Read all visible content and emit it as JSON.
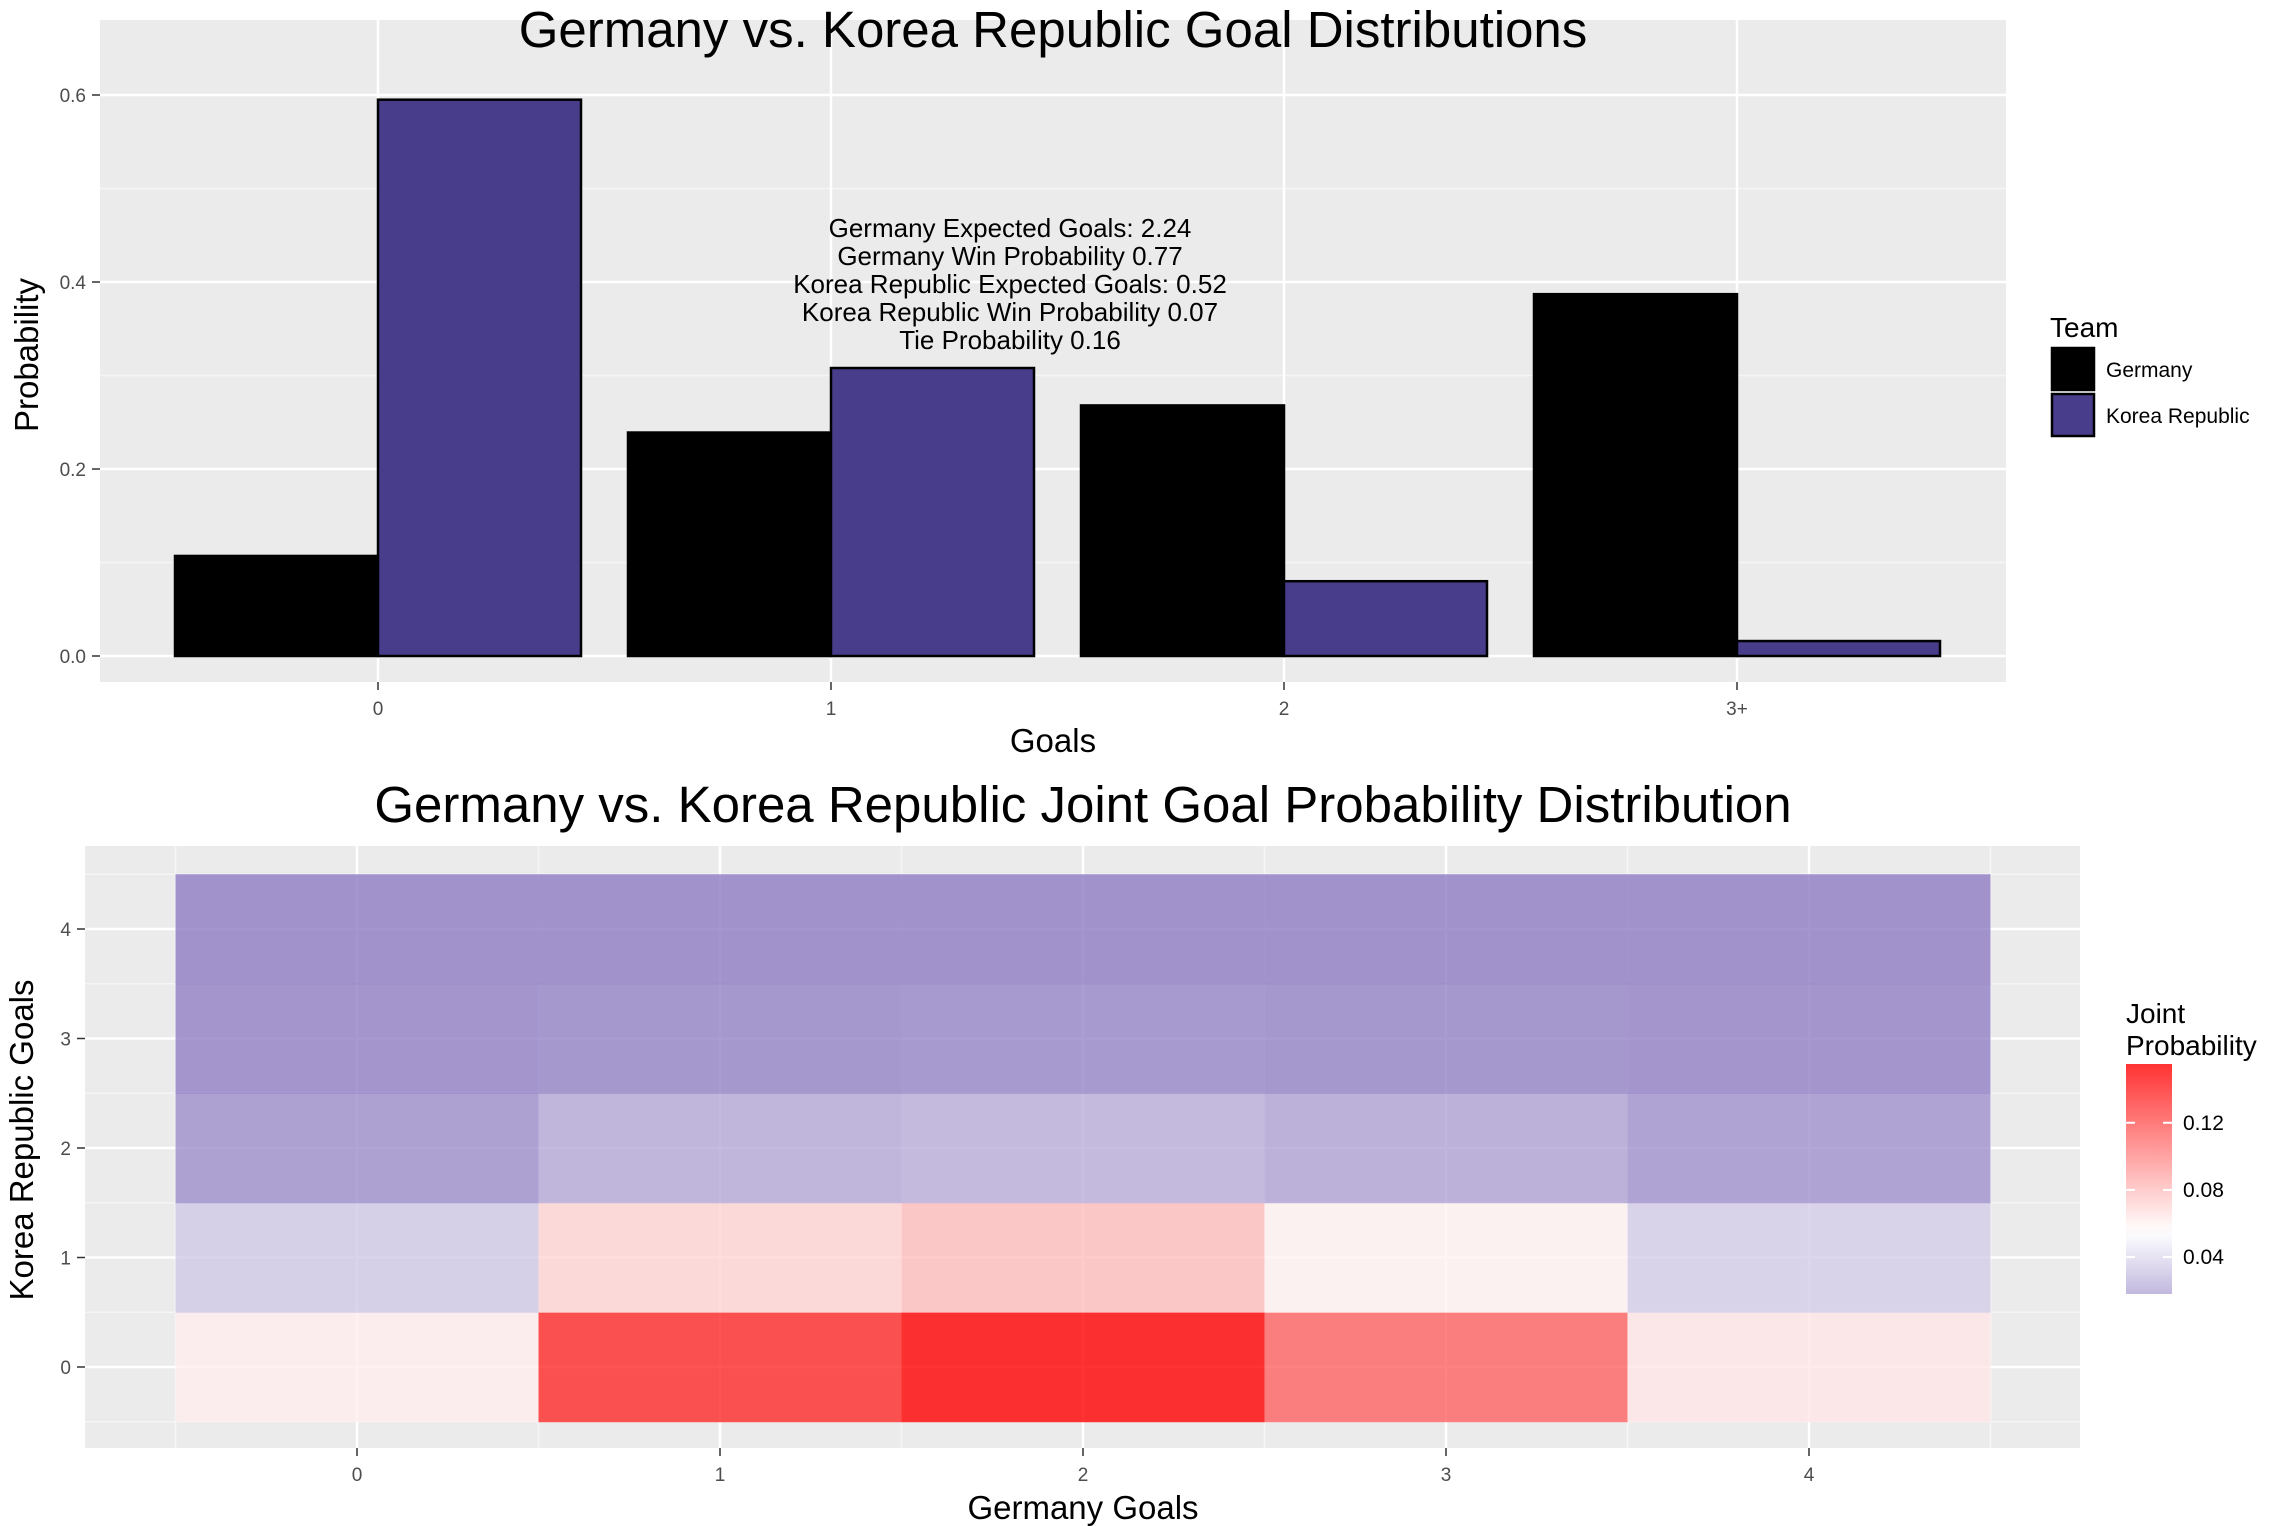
{
  "chart_data": [
    {
      "type": "bar",
      "title": "Germany vs. Korea Republic Goal Distributions",
      "xlabel": "Goals",
      "ylabel": "Probability",
      "categories": [
        "0",
        "1",
        "2",
        "3+"
      ],
      "series": [
        {
          "name": "Germany",
          "values": [
            0.107,
            0.239,
            0.268,
            0.387
          ],
          "color": "#000000"
        },
        {
          "name": "Korea Republic",
          "values": [
            0.595,
            0.308,
            0.08,
            0.016
          ],
          "color": "#483D8B"
        }
      ],
      "ylim": [
        0,
        0.6
      ],
      "yticks": [
        "0.0",
        "0.2",
        "0.4",
        "0.6"
      ],
      "grid": true,
      "legend": {
        "title": "Team",
        "position": "right"
      },
      "annotation": [
        "Germany Expected Goals: 2.24",
        "Germany Win Probability 0.77",
        "Korea Republic Expected Goals: 0.52",
        "Korea Republic Win Probability 0.07",
        "Tie Probability 0.16"
      ]
    },
    {
      "type": "heatmap",
      "title": "Germany vs. Korea Republic Joint Goal Probability Distribution",
      "xlabel": "Germany Goals",
      "ylabel": "Korea Republic Goals",
      "x": [
        "0",
        "1",
        "2",
        "3",
        "4"
      ],
      "y": [
        "0",
        "1",
        "2",
        "3",
        "4"
      ],
      "values": [
        [
          0.062,
          0.139,
          0.155,
          0.116,
          0.065
        ],
        [
          0.032,
          0.072,
          0.081,
          0.06,
          0.034
        ],
        [
          0.008,
          0.019,
          0.021,
          0.016,
          0.009
        ],
        [
          0.002,
          0.003,
          0.004,
          0.003,
          0.002
        ],
        [
          0.0,
          0.0,
          0.0,
          0.0,
          0.0
        ]
      ],
      "color_scale": {
        "low": "#8E7CC3",
        "mid": "#FFFFFF",
        "high": "#FF0000",
        "midpoint": 0.055,
        "max": 0.155
      },
      "grid": true,
      "legend": {
        "title": "Joint\nProbability",
        "ticks": [
          "0.04",
          "0.08",
          "0.12"
        ],
        "tick_values": [
          0.04,
          0.08,
          0.12
        ],
        "position": "right"
      }
    }
  ]
}
